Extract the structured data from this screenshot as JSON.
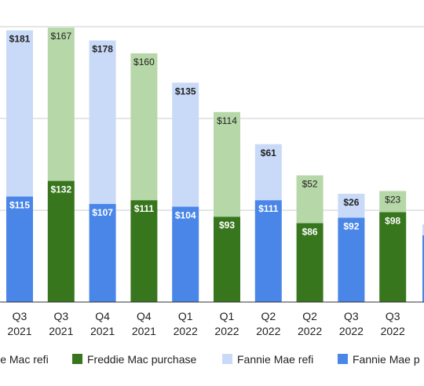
{
  "chart_data": {
    "type": "bar",
    "stacked": true,
    "categories": [
      "Q3 2021",
      "Q3 2021",
      "Q4 2021",
      "Q4 2021",
      "Q1 2022",
      "Q1 2022",
      "Q2 2022",
      "Q2 2022",
      "Q3 2022",
      "Q3 2022"
    ],
    "tick_labels": [
      [
        "Q3",
        "2021"
      ],
      [
        "Q3",
        "2021"
      ],
      [
        "Q4",
        "2021"
      ],
      [
        "Q4",
        "2021"
      ],
      [
        "Q1",
        "2022"
      ],
      [
        "Q1",
        "2022"
      ],
      [
        "Q2",
        "2022"
      ],
      [
        "Q2",
        "2022"
      ],
      [
        "Q3",
        "2022"
      ],
      [
        "Q3",
        "2022"
      ]
    ],
    "agency": [
      "Fannie Mae",
      "Freddie Mac",
      "Fannie Mae",
      "Freddie Mac",
      "Fannie Mae",
      "Freddie Mac",
      "Fannie Mae",
      "Freddie Mac",
      "Fannie Mae",
      "Freddie Mac"
    ],
    "bottom_values": [
      115,
      132,
      107,
      111,
      104,
      93,
      111,
      86,
      92,
      98
    ],
    "top_values": [
      181,
      167,
      178,
      160,
      135,
      114,
      61,
      52,
      26,
      23
    ],
    "bottom_labels": [
      "$115",
      "$132",
      "$107",
      "$111",
      "$104",
      "$93",
      "$111",
      "$86",
      "$92",
      "$98"
    ],
    "top_labels": [
      "$181",
      "$167",
      "$178",
      "$160",
      "$135",
      "$114",
      "$61",
      "$52",
      "$26",
      "$23"
    ],
    "series": [
      {
        "name": "Freddie Mac refi",
        "color": "#b6d7a8",
        "legend_text": "lie Mac refi"
      },
      {
        "name": "Freddie Mac purchase",
        "color": "#38761d",
        "legend_text": "Freddie Mac purchase"
      },
      {
        "name": "Fannie Mae refi",
        "color": "#c9daf8",
        "legend_text": "Fannie Mae refi"
      },
      {
        "name": "Fannie Mae purchase",
        "color": "#4a86e8",
        "legend_text": "Fannie Mae p"
      }
    ],
    "ylim": [
      0,
      300
    ],
    "grid": true,
    "legend_position": "bottom"
  }
}
